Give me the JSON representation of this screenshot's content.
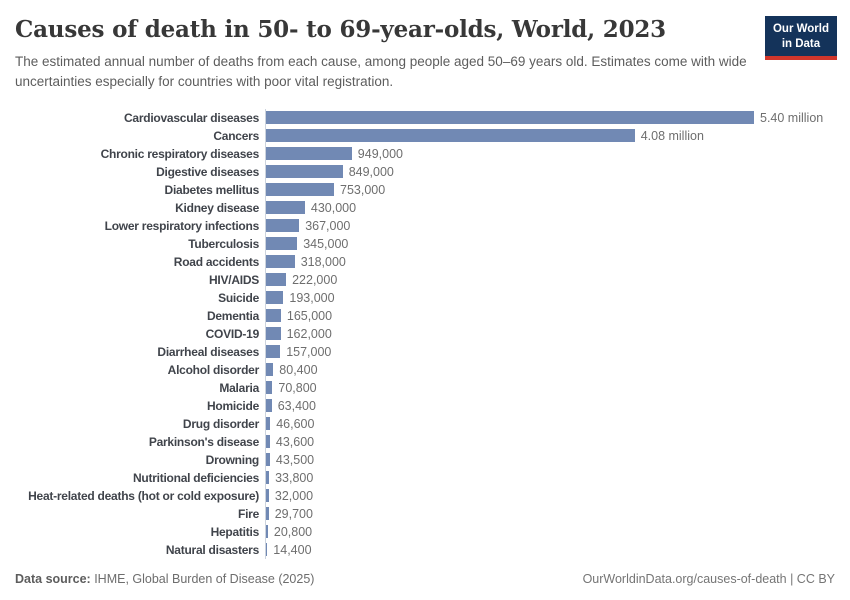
{
  "header": {
    "title": "Causes of death in 50- to 69-year-olds, World, 2023",
    "subtitle": "The estimated annual number of deaths from each cause, among people aged 50–69 years old. Estimates come with wide uncertainties especially for countries with poor vital registration.",
    "logo": {
      "line1": "Our World",
      "line2": "in Data",
      "background_color": "#14335a",
      "accent_color": "#d1362b"
    }
  },
  "chart_data": {
    "type": "bar",
    "orientation": "horizontal",
    "title": "Causes of death in 50- to 69-year-olds, World, 2023",
    "xlabel": "",
    "ylabel": "",
    "xlim": [
      0,
      5400000
    ],
    "grid": false,
    "legend": false,
    "bar_color": "#7189b4",
    "axis_line_color": "#ccd3dd",
    "categories": [
      "Cardiovascular diseases",
      "Cancers",
      "Chronic respiratory diseases",
      "Digestive diseases",
      "Diabetes mellitus",
      "Kidney disease",
      "Lower respiratory infections",
      "Tuberculosis",
      "Road accidents",
      "HIV/AIDS",
      "Suicide",
      "Dementia",
      "COVID-19",
      "Diarrheal diseases",
      "Alcohol disorder",
      "Malaria",
      "Homicide",
      "Drug disorder",
      "Parkinson's disease",
      "Drowning",
      "Nutritional deficiencies",
      "Heat-related deaths (hot or cold exposure)",
      "Fire",
      "Hepatitis",
      "Natural disasters"
    ],
    "values": [
      5400000,
      4080000,
      949000,
      849000,
      753000,
      430000,
      367000,
      345000,
      318000,
      222000,
      193000,
      165000,
      162000,
      157000,
      80400,
      70800,
      63400,
      46600,
      43600,
      43500,
      33800,
      32000,
      29700,
      20800,
      14400
    ],
    "value_labels": [
      "5.40 million",
      "4.08 million",
      "949,000",
      "849,000",
      "753,000",
      "430,000",
      "367,000",
      "345,000",
      "318,000",
      "222,000",
      "193,000",
      "165,000",
      "162,000",
      "157,000",
      "80,400",
      "70,800",
      "63,400",
      "46,600",
      "43,600",
      "43,500",
      "33,800",
      "32,000",
      "29,700",
      "20,800",
      "14,400"
    ]
  },
  "footer": {
    "source_label": "Data source:",
    "source_text": " IHME, Global Burden of Disease (2025)",
    "cite_text": "OurWorldinData.org/causes-of-death | CC BY"
  }
}
